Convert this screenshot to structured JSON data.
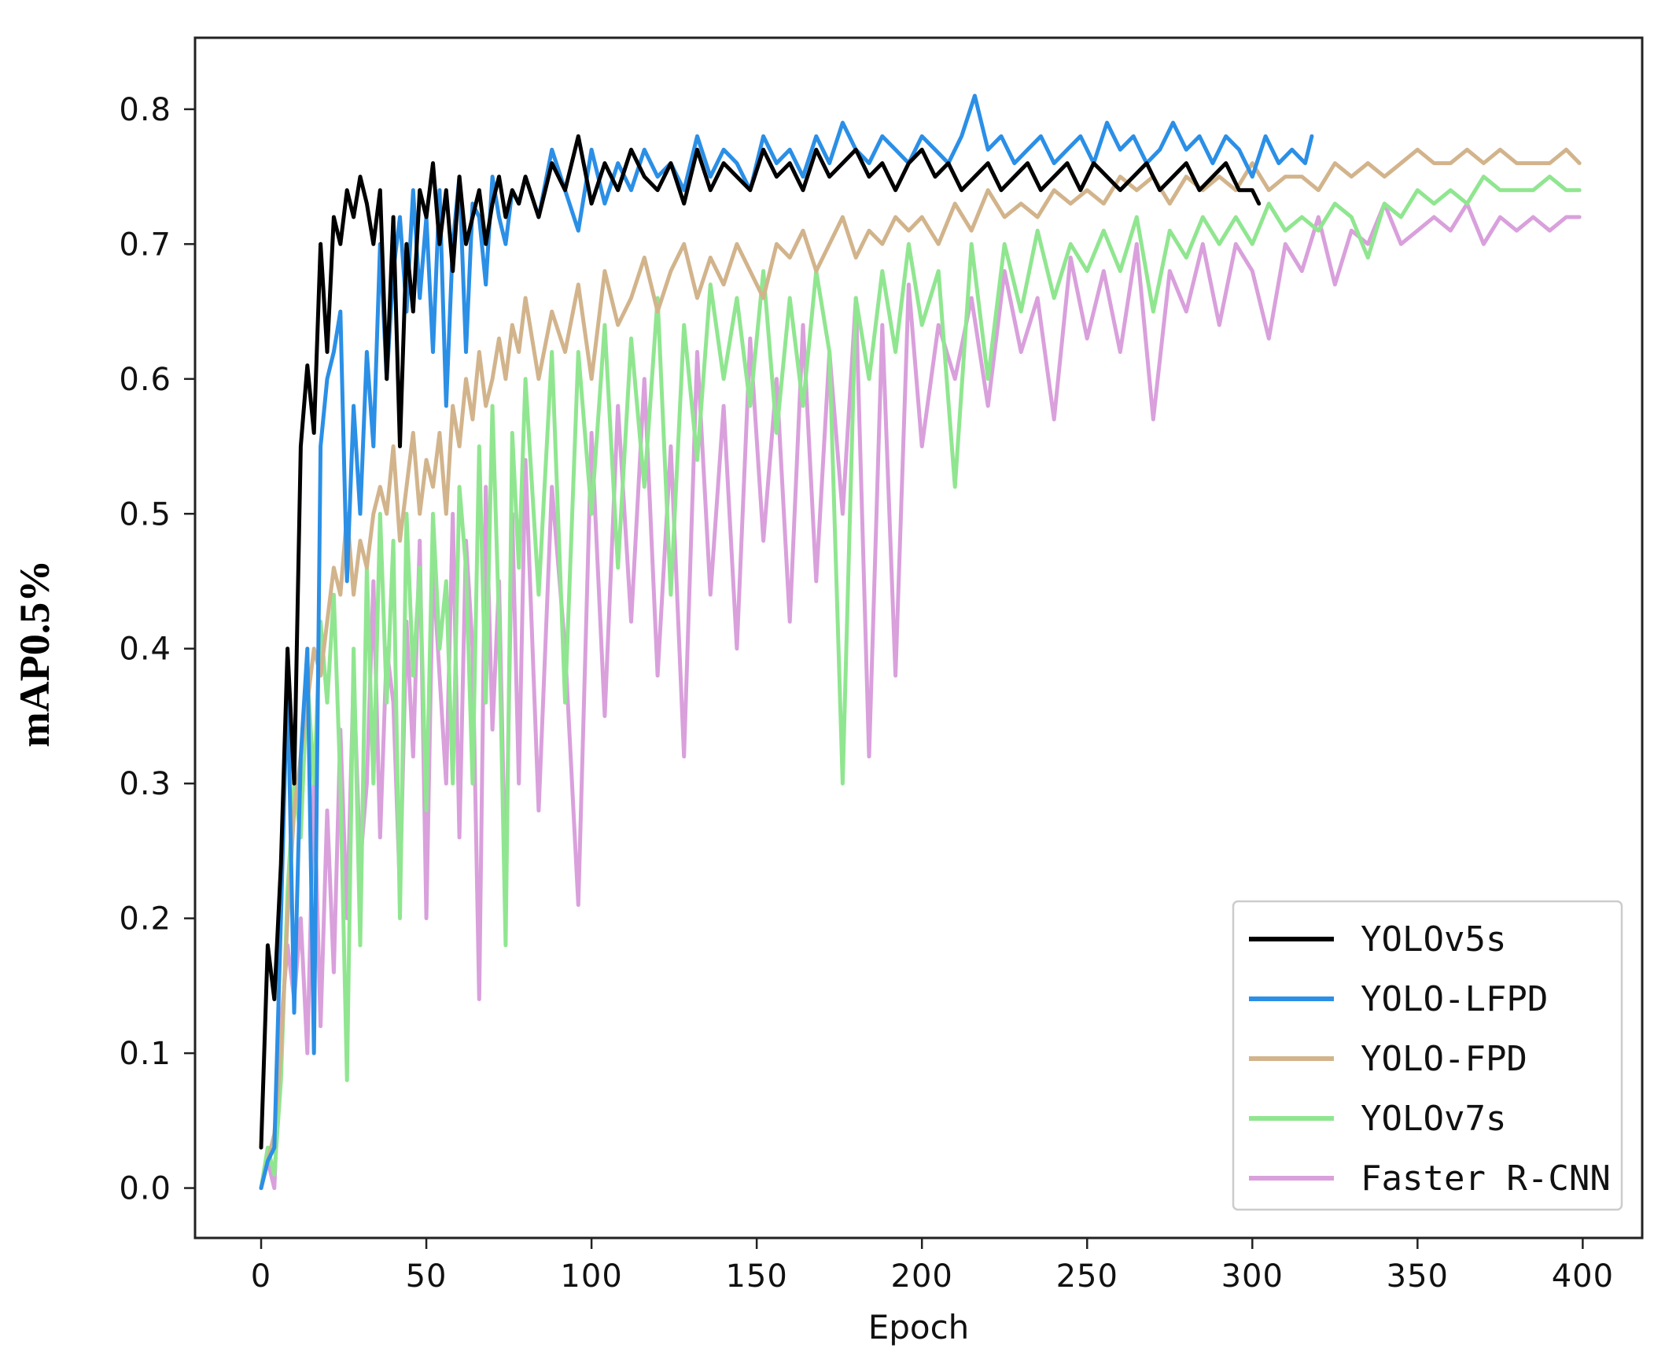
{
  "chart_data": {
    "type": "line",
    "title": "",
    "xlabel": "Epoch",
    "ylabel": "mAP0.5%",
    "xlim": [
      -20,
      418
    ],
    "ylim": [
      -0.037,
      0.853
    ],
    "xticks": [
      0,
      50,
      100,
      150,
      200,
      250,
      300,
      350,
      400
    ],
    "yticks": [
      0.0,
      0.1,
      0.2,
      0.3,
      0.4,
      0.5,
      0.6,
      0.7,
      0.8
    ],
    "xtick_labels": [
      "0",
      "50",
      "100",
      "150",
      "200",
      "250",
      "300",
      "350",
      "400"
    ],
    "ytick_labels": [
      "0.0",
      "0.1",
      "0.2",
      "0.3",
      "0.4",
      "0.5",
      "0.6",
      "0.7",
      "0.8"
    ],
    "grid": false,
    "legend": "bottom-right",
    "series": [
      {
        "name": "Faster R-CNN",
        "color": "#d9a0dc",
        "x": [
          0,
          2,
          4,
          6,
          8,
          10,
          12,
          14,
          16,
          18,
          20,
          22,
          24,
          26,
          28,
          30,
          32,
          34,
          36,
          38,
          40,
          42,
          44,
          46,
          48,
          50,
          52,
          54,
          56,
          58,
          60,
          62,
          64,
          66,
          68,
          70,
          72,
          74,
          76,
          78,
          80,
          84,
          88,
          92,
          96,
          100,
          104,
          108,
          112,
          116,
          120,
          124,
          128,
          132,
          136,
          140,
          144,
          148,
          152,
          156,
          160,
          164,
          168,
          172,
          176,
          180,
          184,
          188,
          192,
          196,
          200,
          205,
          210,
          215,
          220,
          225,
          230,
          235,
          240,
          245,
          250,
          255,
          260,
          265,
          270,
          275,
          280,
          285,
          290,
          295,
          300,
          305,
          310,
          315,
          320,
          325,
          330,
          335,
          340,
          345,
          350,
          355,
          360,
          365,
          370,
          375,
          380,
          385,
          390,
          395,
          399
        ],
        "values": [
          0.0,
          0.02,
          0.0,
          0.12,
          0.18,
          0.14,
          0.2,
          0.1,
          0.3,
          0.12,
          0.28,
          0.16,
          0.34,
          0.2,
          0.38,
          0.24,
          0.3,
          0.45,
          0.26,
          0.4,
          0.36,
          0.22,
          0.42,
          0.32,
          0.48,
          0.2,
          0.46,
          0.38,
          0.3,
          0.5,
          0.26,
          0.48,
          0.4,
          0.14,
          0.52,
          0.34,
          0.45,
          0.22,
          0.5,
          0.3,
          0.54,
          0.28,
          0.52,
          0.4,
          0.21,
          0.56,
          0.35,
          0.58,
          0.42,
          0.6,
          0.38,
          0.55,
          0.32,
          0.62,
          0.44,
          0.58,
          0.4,
          0.63,
          0.48,
          0.6,
          0.42,
          0.64,
          0.45,
          0.62,
          0.5,
          0.66,
          0.32,
          0.64,
          0.38,
          0.67,
          0.55,
          0.64,
          0.6,
          0.66,
          0.58,
          0.68,
          0.62,
          0.66,
          0.57,
          0.69,
          0.63,
          0.68,
          0.62,
          0.7,
          0.57,
          0.68,
          0.65,
          0.7,
          0.64,
          0.7,
          0.68,
          0.63,
          0.7,
          0.68,
          0.72,
          0.67,
          0.71,
          0.7,
          0.73,
          0.7,
          0.71,
          0.72,
          0.71,
          0.73,
          0.7,
          0.72,
          0.71,
          0.72,
          0.71,
          0.72,
          0.72
        ]
      },
      {
        "name": "YOLOv7s",
        "color": "#90e690",
        "x": [
          0,
          2,
          4,
          6,
          8,
          10,
          12,
          14,
          16,
          18,
          20,
          22,
          24,
          26,
          28,
          30,
          32,
          34,
          36,
          38,
          40,
          42,
          44,
          46,
          48,
          50,
          52,
          54,
          56,
          58,
          60,
          62,
          64,
          66,
          68,
          70,
          72,
          74,
          76,
          78,
          80,
          84,
          88,
          92,
          96,
          100,
          104,
          108,
          112,
          116,
          120,
          124,
          128,
          132,
          136,
          140,
          144,
          148,
          152,
          156,
          160,
          164,
          168,
          172,
          176,
          180,
          184,
          188,
          192,
          196,
          200,
          205,
          210,
          215,
          220,
          225,
          230,
          235,
          240,
          245,
          250,
          255,
          260,
          265,
          270,
          275,
          280,
          285,
          290,
          295,
          300,
          305,
          310,
          315,
          320,
          325,
          330,
          335,
          340,
          345,
          350,
          355,
          360,
          365,
          370,
          375,
          380,
          385,
          390,
          395,
          399
        ],
        "values": [
          0.0,
          0.03,
          0.01,
          0.08,
          0.22,
          0.3,
          0.26,
          0.38,
          0.3,
          0.42,
          0.36,
          0.44,
          0.3,
          0.08,
          0.4,
          0.18,
          0.46,
          0.3,
          0.5,
          0.36,
          0.48,
          0.2,
          0.5,
          0.38,
          0.46,
          0.28,
          0.5,
          0.4,
          0.45,
          0.3,
          0.52,
          0.46,
          0.3,
          0.55,
          0.36,
          0.58,
          0.42,
          0.18,
          0.56,
          0.46,
          0.6,
          0.44,
          0.62,
          0.36,
          0.62,
          0.5,
          0.64,
          0.46,
          0.63,
          0.52,
          0.66,
          0.44,
          0.64,
          0.54,
          0.67,
          0.6,
          0.66,
          0.58,
          0.68,
          0.56,
          0.66,
          0.58,
          0.68,
          0.62,
          0.3,
          0.66,
          0.6,
          0.68,
          0.62,
          0.7,
          0.64,
          0.68,
          0.52,
          0.7,
          0.6,
          0.7,
          0.65,
          0.71,
          0.66,
          0.7,
          0.68,
          0.71,
          0.68,
          0.72,
          0.65,
          0.71,
          0.69,
          0.72,
          0.7,
          0.72,
          0.7,
          0.73,
          0.71,
          0.72,
          0.71,
          0.73,
          0.72,
          0.69,
          0.73,
          0.72,
          0.74,
          0.73,
          0.74,
          0.73,
          0.75,
          0.74,
          0.74,
          0.74,
          0.75,
          0.74,
          0.74
        ]
      },
      {
        "name": "YOLO-FPD",
        "color": "#d2b48c",
        "x": [
          0,
          2,
          4,
          6,
          8,
          10,
          12,
          14,
          16,
          18,
          20,
          22,
          24,
          26,
          28,
          30,
          32,
          34,
          36,
          38,
          40,
          42,
          44,
          46,
          48,
          50,
          52,
          54,
          56,
          58,
          60,
          62,
          64,
          66,
          68,
          70,
          72,
          74,
          76,
          78,
          80,
          84,
          88,
          92,
          96,
          100,
          104,
          108,
          112,
          116,
          120,
          124,
          128,
          132,
          136,
          140,
          144,
          148,
          152,
          156,
          160,
          164,
          168,
          172,
          176,
          180,
          184,
          188,
          192,
          196,
          200,
          205,
          210,
          215,
          220,
          225,
          230,
          235,
          240,
          245,
          250,
          255,
          260,
          265,
          270,
          275,
          280,
          285,
          290,
          295,
          300,
          305,
          310,
          315,
          320,
          325,
          330,
          335,
          340,
          345,
          350,
          355,
          360,
          365,
          370,
          375,
          380,
          385,
          390,
          395,
          399
        ],
        "values": [
          0.0,
          0.02,
          0.04,
          0.1,
          0.2,
          0.28,
          0.32,
          0.36,
          0.4,
          0.38,
          0.42,
          0.46,
          0.44,
          0.5,
          0.44,
          0.48,
          0.46,
          0.5,
          0.52,
          0.5,
          0.55,
          0.48,
          0.52,
          0.56,
          0.5,
          0.54,
          0.52,
          0.56,
          0.5,
          0.58,
          0.55,
          0.6,
          0.57,
          0.62,
          0.58,
          0.6,
          0.63,
          0.6,
          0.64,
          0.62,
          0.66,
          0.6,
          0.65,
          0.62,
          0.67,
          0.6,
          0.68,
          0.64,
          0.66,
          0.69,
          0.65,
          0.68,
          0.7,
          0.66,
          0.69,
          0.67,
          0.7,
          0.68,
          0.66,
          0.7,
          0.69,
          0.71,
          0.68,
          0.7,
          0.72,
          0.69,
          0.71,
          0.7,
          0.72,
          0.71,
          0.72,
          0.7,
          0.73,
          0.71,
          0.74,
          0.72,
          0.73,
          0.72,
          0.74,
          0.73,
          0.74,
          0.73,
          0.75,
          0.74,
          0.75,
          0.73,
          0.75,
          0.74,
          0.75,
          0.74,
          0.76,
          0.74,
          0.75,
          0.75,
          0.74,
          0.76,
          0.75,
          0.76,
          0.75,
          0.76,
          0.77,
          0.76,
          0.76,
          0.77,
          0.76,
          0.77,
          0.76,
          0.76,
          0.76,
          0.77,
          0.76
        ]
      },
      {
        "name": "YOLO-LFPD",
        "color": "#2b8fe6",
        "x": [
          0,
          2,
          4,
          6,
          8,
          10,
          12,
          14,
          16,
          18,
          20,
          22,
          24,
          26,
          28,
          30,
          32,
          34,
          36,
          38,
          40,
          42,
          44,
          46,
          48,
          50,
          52,
          54,
          56,
          58,
          60,
          62,
          64,
          66,
          68,
          70,
          72,
          74,
          76,
          78,
          80,
          84,
          88,
          92,
          96,
          100,
          104,
          108,
          112,
          116,
          120,
          124,
          128,
          132,
          136,
          140,
          144,
          148,
          152,
          156,
          160,
          164,
          168,
          172,
          176,
          180,
          184,
          188,
          192,
          196,
          200,
          204,
          208,
          212,
          216,
          220,
          224,
          228,
          232,
          236,
          240,
          244,
          248,
          252,
          256,
          260,
          264,
          268,
          272,
          276,
          280,
          284,
          288,
          292,
          296,
          300,
          304,
          308,
          312,
          316,
          318
        ],
        "values": [
          0.0,
          0.02,
          0.03,
          0.2,
          0.38,
          0.13,
          0.32,
          0.4,
          0.1,
          0.55,
          0.6,
          0.62,
          0.65,
          0.45,
          0.58,
          0.5,
          0.62,
          0.55,
          0.7,
          0.6,
          0.68,
          0.72,
          0.65,
          0.74,
          0.66,
          0.72,
          0.62,
          0.74,
          0.58,
          0.7,
          0.75,
          0.62,
          0.73,
          0.72,
          0.67,
          0.75,
          0.72,
          0.7,
          0.74,
          0.73,
          0.75,
          0.72,
          0.77,
          0.74,
          0.71,
          0.77,
          0.73,
          0.76,
          0.74,
          0.77,
          0.75,
          0.76,
          0.74,
          0.78,
          0.75,
          0.77,
          0.76,
          0.74,
          0.78,
          0.76,
          0.77,
          0.75,
          0.78,
          0.76,
          0.79,
          0.77,
          0.76,
          0.78,
          0.77,
          0.76,
          0.78,
          0.77,
          0.76,
          0.78,
          0.81,
          0.77,
          0.78,
          0.76,
          0.77,
          0.78,
          0.76,
          0.77,
          0.78,
          0.76,
          0.79,
          0.77,
          0.78,
          0.76,
          0.77,
          0.79,
          0.77,
          0.78,
          0.76,
          0.78,
          0.77,
          0.75,
          0.78,
          0.76,
          0.77,
          0.76,
          0.78
        ]
      },
      {
        "name": "YOLOv5s",
        "color": "#000000",
        "x": [
          0,
          2,
          4,
          6,
          8,
          10,
          12,
          14,
          16,
          18,
          20,
          22,
          24,
          26,
          28,
          30,
          32,
          34,
          36,
          38,
          40,
          42,
          44,
          46,
          48,
          50,
          52,
          54,
          56,
          58,
          60,
          62,
          64,
          66,
          68,
          70,
          72,
          74,
          76,
          78,
          80,
          84,
          88,
          92,
          96,
          100,
          104,
          108,
          112,
          116,
          120,
          124,
          128,
          132,
          136,
          140,
          144,
          148,
          152,
          156,
          160,
          164,
          168,
          172,
          176,
          180,
          184,
          188,
          192,
          196,
          200,
          204,
          208,
          212,
          216,
          220,
          224,
          228,
          232,
          236,
          240,
          244,
          248,
          252,
          256,
          260,
          264,
          268,
          272,
          276,
          280,
          284,
          288,
          292,
          296,
          300,
          302
        ],
        "values": [
          0.03,
          0.18,
          0.14,
          0.24,
          0.4,
          0.3,
          0.55,
          0.61,
          0.56,
          0.7,
          0.62,
          0.72,
          0.7,
          0.74,
          0.72,
          0.75,
          0.73,
          0.7,
          0.74,
          0.6,
          0.72,
          0.55,
          0.7,
          0.65,
          0.74,
          0.72,
          0.76,
          0.7,
          0.74,
          0.68,
          0.75,
          0.7,
          0.72,
          0.74,
          0.7,
          0.73,
          0.75,
          0.72,
          0.74,
          0.73,
          0.75,
          0.72,
          0.76,
          0.74,
          0.78,
          0.73,
          0.76,
          0.74,
          0.77,
          0.75,
          0.74,
          0.76,
          0.73,
          0.77,
          0.74,
          0.76,
          0.75,
          0.74,
          0.77,
          0.75,
          0.76,
          0.74,
          0.77,
          0.75,
          0.76,
          0.77,
          0.75,
          0.76,
          0.74,
          0.76,
          0.77,
          0.75,
          0.76,
          0.74,
          0.75,
          0.76,
          0.74,
          0.75,
          0.76,
          0.74,
          0.75,
          0.76,
          0.74,
          0.76,
          0.75,
          0.74,
          0.75,
          0.76,
          0.74,
          0.75,
          0.76,
          0.74,
          0.75,
          0.76,
          0.74,
          0.74,
          0.73
        ]
      }
    ],
    "legend_order": [
      "YOLOv5s",
      "YOLO-LFPD",
      "YOLO-FPD",
      "YOLOv7s",
      "Faster R-CNN"
    ]
  }
}
